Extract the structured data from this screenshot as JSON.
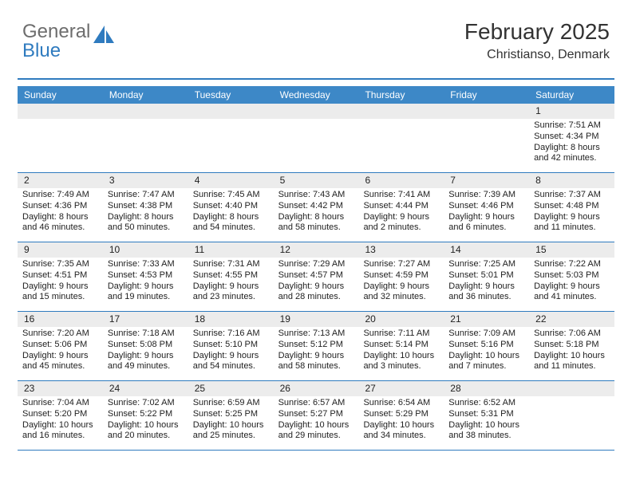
{
  "logo": {
    "line1": "General",
    "line2": "Blue"
  },
  "header": {
    "title": "February 2025",
    "location": "Christianso, Denmark"
  },
  "colors": {
    "accent": "#2f7bbf",
    "header_bg": "#3d88c7",
    "day_number_bg": "#ececec",
    "text": "#222222",
    "logo_gray": "#6d6d6d"
  },
  "day_names": [
    "Sunday",
    "Monday",
    "Tuesday",
    "Wednesday",
    "Thursday",
    "Friday",
    "Saturday"
  ],
  "weeks": [
    [
      null,
      null,
      null,
      null,
      null,
      null,
      {
        "n": "1",
        "sunrise": "7:51 AM",
        "sunset": "4:34 PM",
        "daylight": "8 hours and 42 minutes."
      }
    ],
    [
      {
        "n": "2",
        "sunrise": "7:49 AM",
        "sunset": "4:36 PM",
        "daylight": "8 hours and 46 minutes."
      },
      {
        "n": "3",
        "sunrise": "7:47 AM",
        "sunset": "4:38 PM",
        "daylight": "8 hours and 50 minutes."
      },
      {
        "n": "4",
        "sunrise": "7:45 AM",
        "sunset": "4:40 PM",
        "daylight": "8 hours and 54 minutes."
      },
      {
        "n": "5",
        "sunrise": "7:43 AM",
        "sunset": "4:42 PM",
        "daylight": "8 hours and 58 minutes."
      },
      {
        "n": "6",
        "sunrise": "7:41 AM",
        "sunset": "4:44 PM",
        "daylight": "9 hours and 2 minutes."
      },
      {
        "n": "7",
        "sunrise": "7:39 AM",
        "sunset": "4:46 PM",
        "daylight": "9 hours and 6 minutes."
      },
      {
        "n": "8",
        "sunrise": "7:37 AM",
        "sunset": "4:48 PM",
        "daylight": "9 hours and 11 minutes."
      }
    ],
    [
      {
        "n": "9",
        "sunrise": "7:35 AM",
        "sunset": "4:51 PM",
        "daylight": "9 hours and 15 minutes."
      },
      {
        "n": "10",
        "sunrise": "7:33 AM",
        "sunset": "4:53 PM",
        "daylight": "9 hours and 19 minutes."
      },
      {
        "n": "11",
        "sunrise": "7:31 AM",
        "sunset": "4:55 PM",
        "daylight": "9 hours and 23 minutes."
      },
      {
        "n": "12",
        "sunrise": "7:29 AM",
        "sunset": "4:57 PM",
        "daylight": "9 hours and 28 minutes."
      },
      {
        "n": "13",
        "sunrise": "7:27 AM",
        "sunset": "4:59 PM",
        "daylight": "9 hours and 32 minutes."
      },
      {
        "n": "14",
        "sunrise": "7:25 AM",
        "sunset": "5:01 PM",
        "daylight": "9 hours and 36 minutes."
      },
      {
        "n": "15",
        "sunrise": "7:22 AM",
        "sunset": "5:03 PM",
        "daylight": "9 hours and 41 minutes."
      }
    ],
    [
      {
        "n": "16",
        "sunrise": "7:20 AM",
        "sunset": "5:06 PM",
        "daylight": "9 hours and 45 minutes."
      },
      {
        "n": "17",
        "sunrise": "7:18 AM",
        "sunset": "5:08 PM",
        "daylight": "9 hours and 49 minutes."
      },
      {
        "n": "18",
        "sunrise": "7:16 AM",
        "sunset": "5:10 PM",
        "daylight": "9 hours and 54 minutes."
      },
      {
        "n": "19",
        "sunrise": "7:13 AM",
        "sunset": "5:12 PM",
        "daylight": "9 hours and 58 minutes."
      },
      {
        "n": "20",
        "sunrise": "7:11 AM",
        "sunset": "5:14 PM",
        "daylight": "10 hours and 3 minutes."
      },
      {
        "n": "21",
        "sunrise": "7:09 AM",
        "sunset": "5:16 PM",
        "daylight": "10 hours and 7 minutes."
      },
      {
        "n": "22",
        "sunrise": "7:06 AM",
        "sunset": "5:18 PM",
        "daylight": "10 hours and 11 minutes."
      }
    ],
    [
      {
        "n": "23",
        "sunrise": "7:04 AM",
        "sunset": "5:20 PM",
        "daylight": "10 hours and 16 minutes."
      },
      {
        "n": "24",
        "sunrise": "7:02 AM",
        "sunset": "5:22 PM",
        "daylight": "10 hours and 20 minutes."
      },
      {
        "n": "25",
        "sunrise": "6:59 AM",
        "sunset": "5:25 PM",
        "daylight": "10 hours and 25 minutes."
      },
      {
        "n": "26",
        "sunrise": "6:57 AM",
        "sunset": "5:27 PM",
        "daylight": "10 hours and 29 minutes."
      },
      {
        "n": "27",
        "sunrise": "6:54 AM",
        "sunset": "5:29 PM",
        "daylight": "10 hours and 34 minutes."
      },
      {
        "n": "28",
        "sunrise": "6:52 AM",
        "sunset": "5:31 PM",
        "daylight": "10 hours and 38 minutes."
      },
      null
    ]
  ],
  "labels": {
    "sunrise": "Sunrise:",
    "sunset": "Sunset:",
    "daylight": "Daylight:"
  }
}
